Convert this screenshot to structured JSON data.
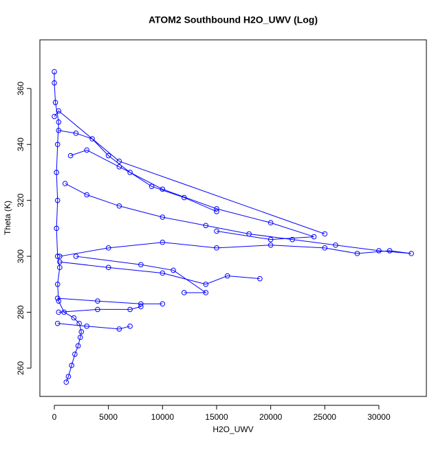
{
  "chart_data": {
    "type": "line",
    "markers": true,
    "title": "ATOM2 Southbound H2O_UWV (Log)",
    "x_label": "H2O_UWV",
    "y_label": "Theta (K)",
    "color": "#0000ff",
    "x": [
      1100,
      1300,
      1600,
      1900,
      2200,
      2400,
      2500,
      2300,
      1800,
      900,
      400,
      300,
      500,
      300,
      200,
      300,
      200,
      300,
      400,
      100,
      0,
      0,
      null,
      500,
      5000,
      10000,
      15000,
      20000,
      25000,
      28000,
      31000,
      33000,
      30000,
      26000,
      22000,
      18000,
      14000,
      10000,
      6000,
      3000,
      1000,
      null,
      1500,
      3000,
      6000,
      10000,
      15000,
      20000,
      24000,
      20000,
      15000,
      null,
      500,
      5000,
      10000,
      14000,
      16000,
      19000,
      null,
      300,
      4000,
      8000,
      10000,
      null,
      400,
      4000,
      7000,
      8000,
      null,
      300,
      3000,
      6000,
      7000,
      null,
      400,
      2000,
      3500,
      5000,
      7000,
      9000,
      12000,
      15000,
      null,
      0,
      400,
      6000,
      25000,
      null,
      2000,
      8000,
      11000,
      14000,
      12000
    ],
    "values": [
      255,
      257,
      261,
      265,
      268,
      271,
      273,
      276,
      278,
      280,
      284,
      290,
      296,
      300,
      310,
      320,
      330,
      340,
      348,
      355,
      362,
      366,
      null,
      300,
      303,
      305,
      303,
      304,
      303,
      301,
      302,
      301,
      302,
      304,
      306,
      308,
      311,
      314,
      318,
      322,
      326,
      null,
      336,
      338,
      332,
      324,
      317,
      312,
      307,
      306,
      309,
      null,
      298,
      296,
      294,
      290,
      293,
      292,
      null,
      285,
      284,
      283,
      283,
      null,
      280,
      281,
      281,
      282,
      null,
      276,
      275,
      274,
      275,
      null,
      345,
      344,
      342,
      336,
      330,
      325,
      321,
      316,
      null,
      350,
      352,
      334,
      308,
      null,
      300,
      297,
      295,
      287,
      287
    ],
    "xlim": [
      -1335,
      34390
    ],
    "ylim": [
      249.9,
      377.4
    ],
    "xticks": [
      0,
      5000,
      10000,
      15000,
      20000,
      25000,
      30000
    ],
    "yticks": [
      260,
      280,
      300,
      320,
      340,
      360
    ]
  }
}
